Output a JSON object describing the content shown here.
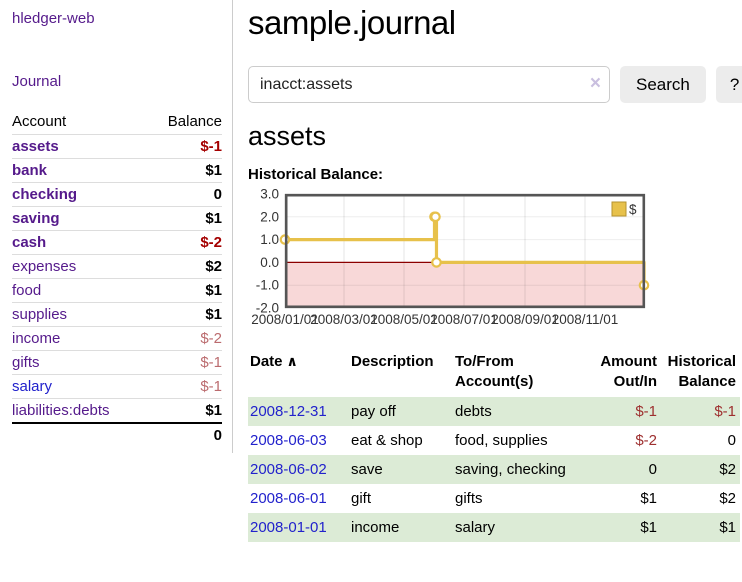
{
  "colors": {
    "purple": "#551a8b",
    "blue": "#2222cc",
    "neg": "#a40000",
    "negsoft": "#bb6b6e",
    "tableneg": "#9e2f2f",
    "rowgreen": "#dcebd6",
    "gold": "#e7c14b",
    "pink": "#f8d8d8"
  },
  "app": {
    "brand": "hledger-web"
  },
  "sidebar": {
    "journal_link": "Journal",
    "header": {
      "account": "Account",
      "balance": "Balance"
    },
    "accounts": [
      {
        "name": "assets",
        "balance": "$-1"
      },
      {
        "name": "bank",
        "balance": "$1"
      },
      {
        "name": "checking",
        "balance": "0"
      },
      {
        "name": "saving",
        "balance": "$1"
      },
      {
        "name": "cash",
        "balance": "$-2"
      },
      {
        "name": "expenses",
        "balance": "$2"
      },
      {
        "name": "food",
        "balance": "$1"
      },
      {
        "name": "supplies",
        "balance": "$1"
      },
      {
        "name": "income",
        "balance": "$-2"
      },
      {
        "name": "gifts",
        "balance": "$-1"
      },
      {
        "name": "salary",
        "balance": "$-1"
      },
      {
        "name": "liabilities:debts",
        "balance": "$1"
      }
    ],
    "total": "0"
  },
  "main": {
    "title": "sample.journal",
    "search": {
      "value": "inacct:assets",
      "clear_icon": "×",
      "button_label": "Search",
      "help_label": "?"
    },
    "account_heading": "assets",
    "chart_label": "Historical Balance:"
  },
  "chart_data": {
    "type": "line",
    "step": true,
    "title": "Historical Balance",
    "series": [
      {
        "name": "$",
        "color": "#e7c14b",
        "points": [
          [
            "2008-01-01",
            1
          ],
          [
            "2008-06-01",
            2
          ],
          [
            "2008-06-02",
            2
          ],
          [
            "2008-06-03",
            0
          ],
          [
            "2008-12-31",
            -1
          ]
        ]
      }
    ],
    "x_range": [
      "2008-01-01",
      "2009-01-01"
    ],
    "ylim": [
      -2,
      3
    ],
    "yticks": [
      {
        "value": 3,
        "label": "3.0"
      },
      {
        "value": 2,
        "label": "2.0"
      },
      {
        "value": 1,
        "label": "1.0"
      },
      {
        "value": 0,
        "label": "0.0"
      },
      {
        "value": -1,
        "label": "-1.0"
      },
      {
        "value": -2,
        "label": "-2.0"
      }
    ],
    "xticks": [
      {
        "date": "2008-01-01",
        "label": "2008/01/01"
      },
      {
        "date": "2008-03-01",
        "label": "2008/03/01"
      },
      {
        "date": "2008-05-01",
        "label": "2008/05/01"
      },
      {
        "date": "2008-07-01",
        "label": "2008/07/01"
      },
      {
        "date": "2008-09-01",
        "label": "2008/09/01"
      },
      {
        "date": "2008-11-01",
        "label": "2008/11/01"
      }
    ],
    "grid": true,
    "zero_line_color": "#8b0000",
    "negative_region_color": "#f8d8d8",
    "legend": {
      "label": "$",
      "position": "top-right"
    }
  },
  "register": {
    "headers": {
      "date": "Date",
      "description": "Description",
      "account": "To/From Account(s)",
      "amount": "Amount Out/In",
      "historical": "Historical Balance"
    },
    "sort_arrow": "∧",
    "rows": [
      {
        "date": "2008-12-31",
        "description": "pay off",
        "account": "debts",
        "amount": "$-1",
        "historical": "$-1"
      },
      {
        "date": "2008-06-03",
        "description": "eat & shop",
        "account": "food, supplies",
        "amount": "$-2",
        "historical": "0"
      },
      {
        "date": "2008-06-02",
        "description": "save",
        "account": "saving, checking",
        "amount": "0",
        "historical": "$2"
      },
      {
        "date": "2008-06-01",
        "description": "gift",
        "account": "gifts",
        "amount": "$1",
        "historical": "$2"
      },
      {
        "date": "2008-01-01",
        "description": "income",
        "account": "salary",
        "amount": "$1",
        "historical": "$1"
      }
    ]
  }
}
